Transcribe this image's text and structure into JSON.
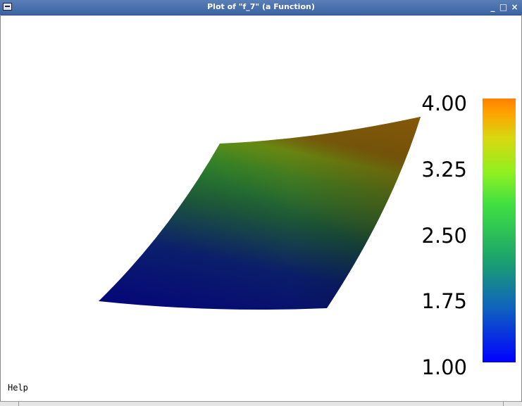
{
  "window": {
    "title": "Plot of \"f_7\" (a Function)",
    "controls": {
      "minimize": "_",
      "maximize": "□",
      "close": "×"
    }
  },
  "plot": {
    "surface_colors": [
      "#04047a",
      "#0b1f6e",
      "#1e5a3a",
      "#2f8a2a",
      "#5aa518",
      "#8a5a08"
    ]
  },
  "colorbar": {
    "tick_labels": [
      "4.00",
      "3.25",
      "2.50",
      "1.75",
      "1.00"
    ],
    "min": 1.0,
    "max": 4.0,
    "colors": [
      "#0000ff",
      "#1060c0",
      "#1aa070",
      "#30d040",
      "#90f020",
      "#d8e010",
      "#ffa000",
      "#ff8000"
    ]
  },
  "help": {
    "label": "Help"
  }
}
